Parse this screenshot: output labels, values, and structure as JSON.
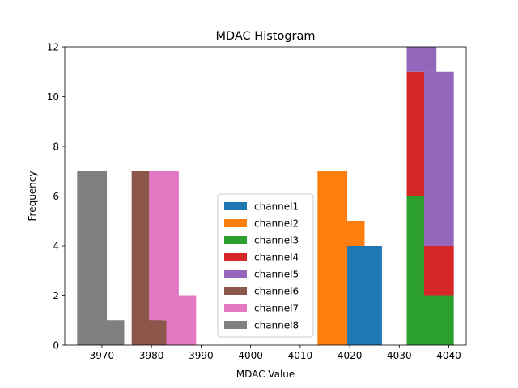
{
  "chart_data": {
    "type": "bar",
    "stacked": true,
    "title": "MDAC Histogram",
    "xlabel": "MDAC Value",
    "ylabel": "Frequency",
    "xlim": [
      3962.5,
      4043.5
    ],
    "ylim": [
      0,
      12
    ],
    "bar_width": 6,
    "xticks": [
      3970,
      3980,
      3990,
      4000,
      4010,
      4020,
      4030,
      4040
    ],
    "yticks": [
      0,
      2,
      4,
      6,
      8,
      10,
      12
    ],
    "legend_position": "lower center",
    "series": [
      {
        "name": "channel1",
        "color": "#1f77b4",
        "bars": [
          {
            "x": 4020,
            "y": 4,
            "base": 0
          },
          {
            "x": 4023.5,
            "y": 4,
            "base": 0
          }
        ]
      },
      {
        "name": "channel2",
        "color": "#ff7f0e",
        "bars": [
          {
            "x": 4016.5,
            "y": 7,
            "base": 0
          },
          {
            "x": 4020,
            "y": 1,
            "base": 4
          }
        ]
      },
      {
        "name": "channel3",
        "color": "#2ca02c",
        "bars": [
          {
            "x": 4034.5,
            "y": 6,
            "base": 0
          },
          {
            "x": 4038,
            "y": 2,
            "base": 0
          }
        ]
      },
      {
        "name": "channel4",
        "color": "#d62728",
        "bars": [
          {
            "x": 4034.5,
            "y": 5,
            "base": 6
          },
          {
            "x": 4038,
            "y": 2,
            "base": 2
          }
        ]
      },
      {
        "name": "channel5",
        "color": "#9467bd",
        "bars": [
          {
            "x": 4034.5,
            "y": 1,
            "base": 11
          },
          {
            "x": 4038,
            "y": 7,
            "base": 4
          }
        ]
      },
      {
        "name": "channel6",
        "color": "#8c564b",
        "bars": [
          {
            "x": 3979,
            "y": 7,
            "base": 0
          },
          {
            "x": 3982.5,
            "y": 1,
            "base": 0
          }
        ]
      },
      {
        "name": "channel7",
        "color": "#e377c2",
        "bars": [
          {
            "x": 3982.5,
            "y": 6,
            "base": 1
          },
          {
            "x": 3986,
            "y": 2,
            "base": 0
          }
        ]
      },
      {
        "name": "channel8",
        "color": "#7f7f7f",
        "bars": [
          {
            "x": 3968,
            "y": 7,
            "base": 0
          },
          {
            "x": 3971.5,
            "y": 1,
            "base": 0
          }
        ]
      }
    ]
  }
}
